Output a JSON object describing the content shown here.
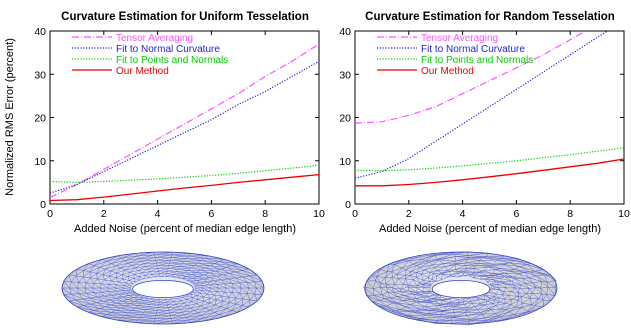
{
  "chart_data": [
    {
      "type": "line",
      "title": "Curvature Estimation for Uniform Tesselation",
      "xlabel": "Added Noise (percent of median edge length)",
      "ylabel": "Normalized RMS Error (percent)",
      "xlim": [
        0,
        10
      ],
      "ylim": [
        0,
        40
      ],
      "xticks": [
        0,
        2,
        4,
        6,
        8,
        10
      ],
      "yticks": [
        0,
        10,
        20,
        30,
        40
      ],
      "grid": false,
      "legend_position": "top-left",
      "series": [
        {
          "name": "Tensor Averaging",
          "color": "#ff55ff",
          "style": "dash-dot",
          "x": [
            0,
            1,
            2,
            3,
            4,
            5,
            6,
            7,
            8,
            9,
            10
          ],
          "y": [
            1.5,
            4.5,
            8.0,
            11.5,
            15.0,
            18.5,
            22.0,
            25.5,
            29.5,
            33.0,
            37.0
          ]
        },
        {
          "name": "Fit to Normal Curvature",
          "color": "#2222dd",
          "style": "dotted",
          "x": [
            0,
            1,
            2,
            3,
            4,
            5,
            6,
            7,
            8,
            9,
            10
          ],
          "y": [
            2.5,
            4.5,
            7.5,
            10.5,
            13.5,
            16.5,
            19.5,
            23.0,
            26.0,
            29.5,
            33.0
          ]
        },
        {
          "name": "Fit to Points and Normals",
          "color": "#00cc00",
          "style": "dotted",
          "x": [
            0,
            1,
            2,
            3,
            4,
            5,
            6,
            7,
            8,
            9,
            10
          ],
          "y": [
            5.2,
            5.0,
            5.2,
            5.5,
            5.8,
            6.2,
            6.6,
            7.1,
            7.7,
            8.3,
            9.0
          ]
        },
        {
          "name": "Our Method",
          "color": "#ee0000",
          "style": "solid",
          "x": [
            0,
            1,
            2,
            3,
            4,
            5,
            6,
            7,
            8,
            9,
            10
          ],
          "y": [
            0.8,
            1.0,
            1.6,
            2.3,
            3.0,
            3.7,
            4.3,
            5.0,
            5.6,
            6.2,
            6.8
          ]
        }
      ]
    },
    {
      "type": "line",
      "title": "Curvature Estimation for Random Tesselation",
      "xlabel": "Added Noise (percent of median edge length)",
      "ylabel": "",
      "xlim": [
        0,
        10
      ],
      "ylim": [
        0,
        40
      ],
      "xticks": [
        0,
        2,
        4,
        6,
        8,
        10
      ],
      "yticks": [
        0,
        10,
        20,
        30,
        40
      ],
      "grid": false,
      "legend_position": "top-left",
      "series": [
        {
          "name": "Tensor Averaging",
          "color": "#ff55ff",
          "style": "dash-dot",
          "x": [
            0,
            1,
            2,
            3,
            4,
            5,
            6,
            7,
            8,
            9,
            10
          ],
          "y": [
            18.7,
            19.0,
            20.5,
            22.5,
            25.5,
            28.5,
            31.5,
            34.5,
            38.0,
            41.5,
            45.0
          ]
        },
        {
          "name": "Fit to Normal Curvature",
          "color": "#2222dd",
          "style": "dotted",
          "x": [
            0,
            1,
            2,
            3,
            4,
            5,
            6,
            7,
            8,
            9,
            10
          ],
          "y": [
            6.0,
            7.5,
            10.5,
            14.5,
            18.5,
            22.5,
            26.5,
            30.5,
            34.5,
            38.5,
            42.5
          ]
        },
        {
          "name": "Fit to Points and Normals",
          "color": "#00cc00",
          "style": "dotted",
          "x": [
            0,
            1,
            2,
            3,
            4,
            5,
            6,
            7,
            8,
            9,
            10
          ],
          "y": [
            7.8,
            7.7,
            7.9,
            8.3,
            8.8,
            9.4,
            10.0,
            10.7,
            11.4,
            12.2,
            13.0
          ]
        },
        {
          "name": "Our Method",
          "color": "#ee0000",
          "style": "solid",
          "x": [
            0,
            1,
            2,
            3,
            4,
            5,
            6,
            7,
            8,
            9,
            10
          ],
          "y": [
            4.2,
            4.2,
            4.5,
            5.0,
            5.6,
            6.3,
            7.0,
            7.8,
            8.6,
            9.4,
            10.4
          ]
        }
      ]
    }
  ],
  "images": [
    {
      "name": "uniform-torus-mesh",
      "description_icon": "torus-mesh-icon",
      "mesh_color": "#3344cc",
      "fill_color": "#d8dce8"
    },
    {
      "name": "random-torus-mesh",
      "description_icon": "torus-mesh-icon",
      "mesh_color": "#3344cc",
      "fill_color": "#dedcd0"
    }
  ]
}
